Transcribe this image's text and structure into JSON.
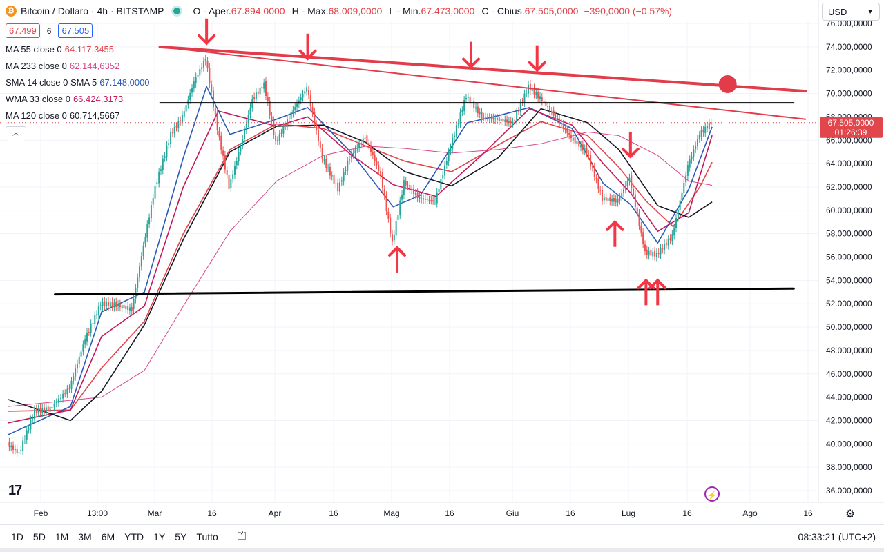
{
  "header": {
    "symbol_icon": "bitcoin-icon",
    "symbol": "Bitcoin / Dollaro · 4h · BITSTAMP",
    "open_label": "O - Aper.",
    "open_value": "67.894,0000",
    "high_label": "H - Max.",
    "high_value": "68.009,0000",
    "low_label": "L - Min.",
    "low_value": "67.473,0000",
    "close_label": "C - Chius.",
    "close_value": "67.505,0000",
    "change": "−390,0000 (−0,57%)"
  },
  "trade": {
    "sell": "67.499",
    "spread": "6",
    "buy": "67.505"
  },
  "indicators": [
    {
      "label": "MA 55 close 0",
      "value": "64.117,3455",
      "color": "#e0464b"
    },
    {
      "label": "MA 233 close 0",
      "value": "62.144,6352",
      "color": "#d6478c"
    },
    {
      "label": "SMA 14 close 0 SMA 5",
      "value": "67.148,0000",
      "color": "#2a5ab8"
    },
    {
      "label": "WMA 33 close 0",
      "value": "66.424,3173",
      "color": "#c2185b"
    },
    {
      "label": "MA 120 close 0",
      "value": "60.714,5667",
      "color": "#131722"
    }
  ],
  "currency": "USD",
  "price_tag": {
    "price": "67.505,0000",
    "countdown": "01:26:39",
    "color": "#e0464b"
  },
  "timeframes": [
    "1D",
    "5D",
    "1M",
    "3M",
    "6M",
    "YTD",
    "1Y",
    "5Y",
    "Tutto"
  ],
  "clock": "08:33:21 (UTC+2)",
  "icons": {
    "collapse": "chevron-up-icon",
    "currency": "chevron-down-icon",
    "range": "calendar-range-icon",
    "settings": "gear-icon",
    "lightning": "lightning-icon",
    "logo": "tv-logo-icon"
  },
  "chart_data": {
    "type": "line",
    "title": "",
    "x_ticks": [
      "Feb",
      "13:00",
      "Mar",
      "16",
      "Apr",
      "16",
      "Mag",
      "16",
      "Giu",
      "16",
      "Lug",
      "16",
      "Ago",
      "16"
    ],
    "y_ticks": [
      "36.000,0000",
      "38.000,0000",
      "40.000,0000",
      "42.000,0000",
      "44.000,0000",
      "46.000,0000",
      "48.000,0000",
      "50.000,0000",
      "52.000,0000",
      "54.000,0000",
      "56.000,0000",
      "58.000,0000",
      "60.000,0000",
      "62.000,0000",
      "64.000,0000",
      "66.000,0000",
      "68.000,0000",
      "70.000,0000",
      "72.000,0000",
      "74.000,0000",
      "76.000,0000"
    ],
    "ylim": [
      35000,
      77000
    ],
    "price_series": {
      "name": "BTC close",
      "x": [
        "2024-01-23",
        "2024-01-26",
        "2024-01-30",
        "2024-02-03",
        "2024-02-08",
        "2024-02-12",
        "2024-02-16",
        "2024-02-20",
        "2024-02-24",
        "2024-02-27",
        "2024-03-01",
        "2024-03-05",
        "2024-03-08",
        "2024-03-11",
        "2024-03-14",
        "2024-03-17",
        "2024-03-20",
        "2024-03-23",
        "2024-03-26",
        "2024-03-29",
        "2024-04-01",
        "2024-04-05",
        "2024-04-09",
        "2024-04-13",
        "2024-04-17",
        "2024-04-20",
        "2024-04-24",
        "2024-04-28",
        "2024-05-01",
        "2024-05-04",
        "2024-05-08",
        "2024-05-12",
        "2024-05-16",
        "2024-05-20",
        "2024-05-24",
        "2024-05-28",
        "2024-06-01",
        "2024-06-05",
        "2024-06-08",
        "2024-06-12",
        "2024-06-16",
        "2024-06-20",
        "2024-06-24",
        "2024-06-28",
        "2024-07-01",
        "2024-07-05",
        "2024-07-08",
        "2024-07-12",
        "2024-07-16",
        "2024-07-19",
        "2024-07-22"
      ],
      "y": [
        40000,
        39200,
        42800,
        43000,
        44800,
        49000,
        52000,
        51900,
        51500,
        57000,
        62000,
        66500,
        68000,
        71000,
        73000,
        67000,
        62000,
        65500,
        69500,
        70800,
        65800,
        68300,
        70500,
        64500,
        61800,
        64500,
        66300,
        63000,
        57200,
        62400,
        61000,
        60800,
        65500,
        69800,
        68000,
        67800,
        67500,
        70600,
        69600,
        68000,
        66200,
        65000,
        61000,
        60800,
        62800,
        56400,
        56200,
        57800,
        63800,
        66500,
        67505
      ]
    },
    "moving_averages": [
      {
        "name": "MA 55 close 0",
        "color": "#e0464b",
        "x": [
          "2024-01-23",
          "2024-02-08",
          "2024-02-16",
          "2024-02-27",
          "2024-03-08",
          "2024-03-20",
          "2024-04-01",
          "2024-04-13",
          "2024-04-24",
          "2024-05-04",
          "2024-05-16",
          "2024-05-28",
          "2024-06-08",
          "2024-06-20",
          "2024-06-28",
          "2024-07-05",
          "2024-07-12",
          "2024-07-19",
          "2024-07-22"
        ],
        "y": [
          42800,
          42900,
          46500,
          50500,
          58000,
          65200,
          67400,
          67000,
          65500,
          64200,
          63300,
          65600,
          67600,
          66400,
          63700,
          60800,
          58600,
          62100,
          64117
        ]
      },
      {
        "name": "MA 233 close 0",
        "color": "#d6478c",
        "x": [
          "2024-01-23",
          "2024-02-16",
          "2024-02-27",
          "2024-03-08",
          "2024-03-20",
          "2024-04-01",
          "2024-04-13",
          "2024-04-24",
          "2024-05-04",
          "2024-05-16",
          "2024-05-28",
          "2024-06-08",
          "2024-06-20",
          "2024-06-28",
          "2024-07-08",
          "2024-07-16",
          "2024-07-22"
        ],
        "y": [
          43200,
          44000,
          46300,
          51800,
          58200,
          62500,
          64700,
          65500,
          65300,
          64900,
          65200,
          65700,
          66700,
          66400,
          64700,
          62500,
          62145
        ]
      },
      {
        "name": "SMA 14 close 0 SMA 5",
        "color": "#2a5ab8",
        "x": [
          "2024-01-23",
          "2024-02-08",
          "2024-02-16",
          "2024-02-27",
          "2024-03-08",
          "2024-03-14",
          "2024-03-20",
          "2024-04-01",
          "2024-04-09",
          "2024-04-20",
          "2024-05-01",
          "2024-05-08",
          "2024-05-20",
          "2024-05-28",
          "2024-06-05",
          "2024-06-16",
          "2024-06-24",
          "2024-07-01",
          "2024-07-08",
          "2024-07-16",
          "2024-07-22"
        ],
        "y": [
          40800,
          43200,
          51300,
          53000,
          64500,
          70600,
          66500,
          67800,
          68800,
          65000,
          60300,
          61300,
          67500,
          68100,
          68800,
          67000,
          62300,
          60500,
          57200,
          61800,
          67148
        ]
      },
      {
        "name": "WMA 33 close 0",
        "color": "#c2185b",
        "x": [
          "2024-01-23",
          "2024-02-08",
          "2024-02-16",
          "2024-02-27",
          "2024-03-08",
          "2024-03-17",
          "2024-04-01",
          "2024-04-09",
          "2024-04-20",
          "2024-05-01",
          "2024-05-12",
          "2024-05-24",
          "2024-06-05",
          "2024-06-16",
          "2024-06-24",
          "2024-07-01",
          "2024-07-08",
          "2024-07-16",
          "2024-07-22"
        ],
        "y": [
          41800,
          42900,
          49200,
          51800,
          62000,
          68500,
          67200,
          68000,
          64800,
          62200,
          61200,
          64800,
          68700,
          67300,
          64000,
          61500,
          58200,
          59800,
          66424
        ]
      },
      {
        "name": "MA 120 close 0",
        "color": "#131722",
        "x": [
          "2024-01-23",
          "2024-02-08",
          "2024-02-16",
          "2024-02-27",
          "2024-03-08",
          "2024-03-20",
          "2024-04-01",
          "2024-04-13",
          "2024-04-24",
          "2024-05-04",
          "2024-05-16",
          "2024-05-28",
          "2024-06-08",
          "2024-06-20",
          "2024-06-28",
          "2024-07-08",
          "2024-07-16",
          "2024-07-22"
        ],
        "y": [
          43800,
          42000,
          44500,
          50200,
          57500,
          65000,
          67200,
          67300,
          65800,
          63300,
          62100,
          64500,
          68700,
          67500,
          65200,
          60400,
          59400,
          60715
        ]
      }
    ],
    "drawings": {
      "trendline_upper": {
        "color": "#e23b4a",
        "x": [
          "2024-03-02",
          "2024-08-15"
        ],
        "y": [
          74000,
          70200
        ]
      },
      "trendline_upper_thin": {
        "color": "#e23b4a",
        "x": [
          "2024-03-02",
          "2024-08-15"
        ],
        "y": [
          74000,
          67800
        ]
      },
      "resistance_line": {
        "color": "#000000",
        "x": [
          "2024-03-02",
          "2024-08-12"
        ],
        "y": [
          69200,
          69200
        ]
      },
      "support_line": {
        "color": "#000000",
        "x": [
          "2024-02-04",
          "2024-08-12"
        ],
        "y": [
          52800,
          53300
        ]
      },
      "target_dot": {
        "color": "#e23b4a",
        "x": "2024-07-26",
        "y": 70800
      },
      "down_arrows": [
        {
          "x": "2024-03-14",
          "y": 74300
        },
        {
          "x": "2024-04-09",
          "y": 73000
        },
        {
          "x": "2024-05-21",
          "y": 72300
        },
        {
          "x": "2024-06-07",
          "y": 72000
        },
        {
          "x": "2024-07-01",
          "y": 64600
        }
      ],
      "up_arrows": [
        {
          "x": "2024-05-02",
          "y": 56800
        },
        {
          "x": "2024-06-27",
          "y": 59000
        },
        {
          "x": "2024-07-05",
          "y": 54000
        },
        {
          "x": "2024-07-08",
          "y": 54000
        }
      ]
    }
  }
}
